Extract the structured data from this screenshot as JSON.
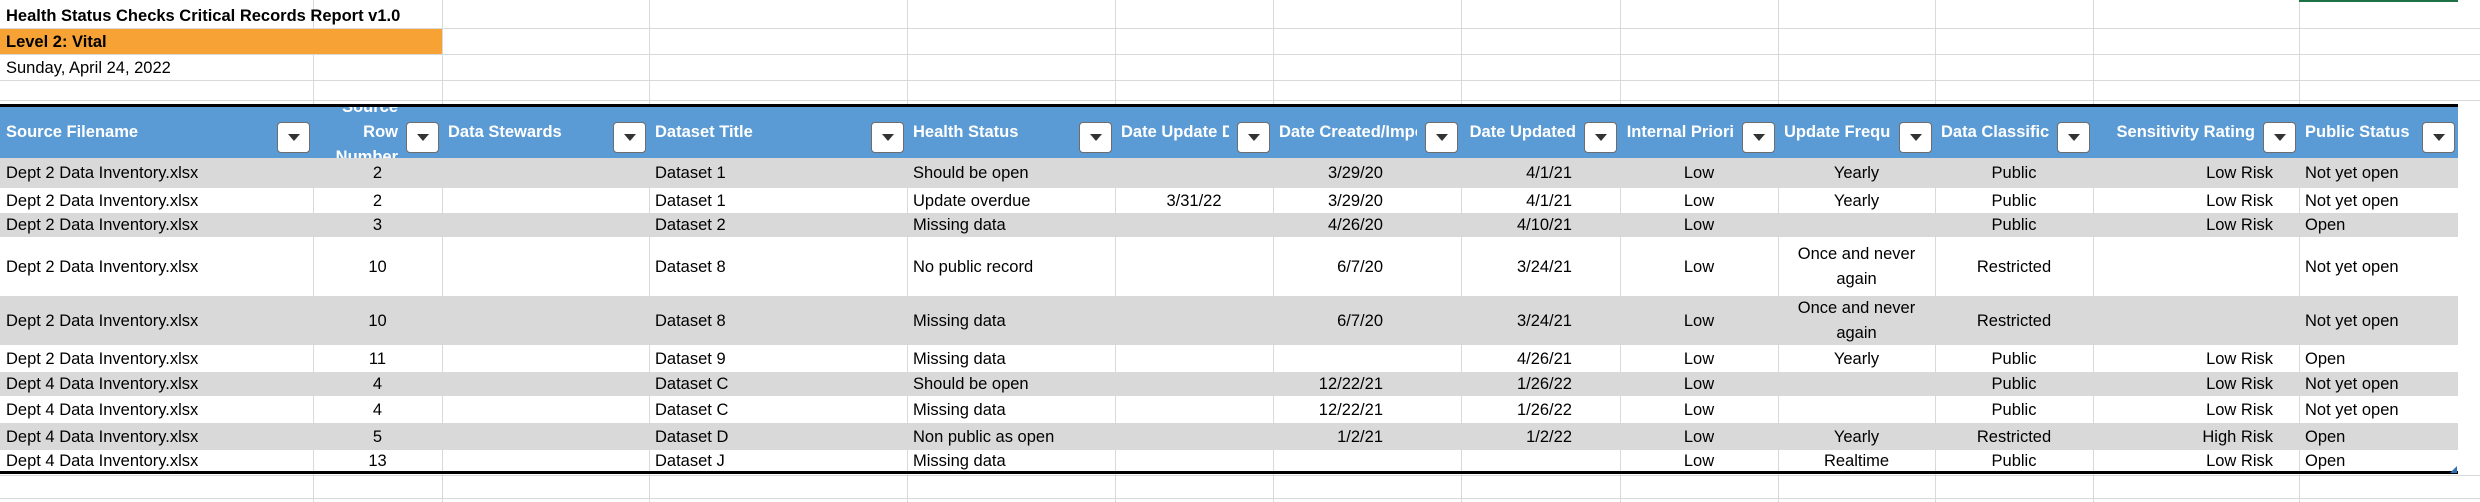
{
  "report": {
    "title": "Health Status Checks Critical Records Report v1.0",
    "level": "Level 2: Vital",
    "date": "Sunday, April 24, 2022"
  },
  "colors": {
    "header_bg": "#5b9bd5",
    "level_bg": "#f7a235",
    "band_bg": "#d9d9d9",
    "gridline": "#d9d9d9"
  },
  "table": {
    "headers": [
      "Source Filename",
      "Source Row Number",
      "Data Stewards",
      "Dataset Title",
      "Health Status",
      "Date Update D",
      "Date Created/Impo",
      "Date Updated",
      "Internal Priori",
      "Update Freque",
      "Data Classificat",
      "Sensitivity Rating",
      "Public Status"
    ],
    "filter_icon": "dropdown-arrow-icon",
    "rows": [
      [
        "Dept 2 Data Inventory.xlsx",
        "2",
        "",
        "Dataset 1",
        "Should be open",
        "",
        "3/29/20",
        "4/1/21",
        "Low",
        "Yearly",
        "Public",
        "Low Risk",
        "Not yet open"
      ],
      [
        "Dept 2 Data Inventory.xlsx",
        "2",
        "",
        "Dataset 1",
        "Update overdue",
        "3/31/22",
        "3/29/20",
        "4/1/21",
        "Low",
        "Yearly",
        "Public",
        "Low Risk",
        "Not yet open"
      ],
      [
        "Dept 2 Data Inventory.xlsx",
        "3",
        "",
        "Dataset 2",
        "Missing data",
        "",
        "4/26/20",
        "4/10/21",
        "Low",
        "",
        "Public",
        "Low Risk",
        "Open"
      ],
      [
        "Dept 2 Data Inventory.xlsx",
        "10",
        "",
        "Dataset 8",
        "No public record",
        "",
        "6/7/20",
        "3/24/21",
        "Low",
        "Once and never again",
        "Restricted",
        "",
        "Not yet open"
      ],
      [
        "Dept 2 Data Inventory.xlsx",
        "10",
        "",
        "Dataset 8",
        "Missing data",
        "",
        "6/7/20",
        "3/24/21",
        "Low",
        "Once and never again",
        "Restricted",
        "",
        "Not yet open"
      ],
      [
        "Dept 2 Data Inventory.xlsx",
        "11",
        "",
        "Dataset 9",
        "Missing data",
        "",
        "",
        "4/26/21",
        "Low",
        "Yearly",
        "Public",
        "Low Risk",
        "Open"
      ],
      [
        "Dept 4 Data Inventory.xlsx",
        "4",
        "",
        "Dataset C",
        "Should be open",
        "",
        "12/22/21",
        "1/26/22",
        "Low",
        "",
        "Public",
        "Low Risk",
        "Not yet open"
      ],
      [
        "Dept 4 Data Inventory.xlsx",
        "4",
        "",
        "Dataset C",
        "Missing data",
        "",
        "12/22/21",
        "1/26/22",
        "Low",
        "",
        "Public",
        "Low Risk",
        "Not yet open"
      ],
      [
        "Dept 4 Data Inventory.xlsx",
        "5",
        "",
        "Dataset D",
        "Non public as open",
        "",
        "1/2/21",
        "1/2/22",
        "Low",
        "Yearly",
        "Restricted",
        "High Risk",
        "Open"
      ],
      [
        "Dept 4 Data Inventory.xlsx",
        "13",
        "",
        "Dataset J",
        "Missing data",
        "",
        "",
        "",
        "Low",
        "Realtime",
        "Public",
        "Low Risk",
        "Open"
      ]
    ]
  }
}
